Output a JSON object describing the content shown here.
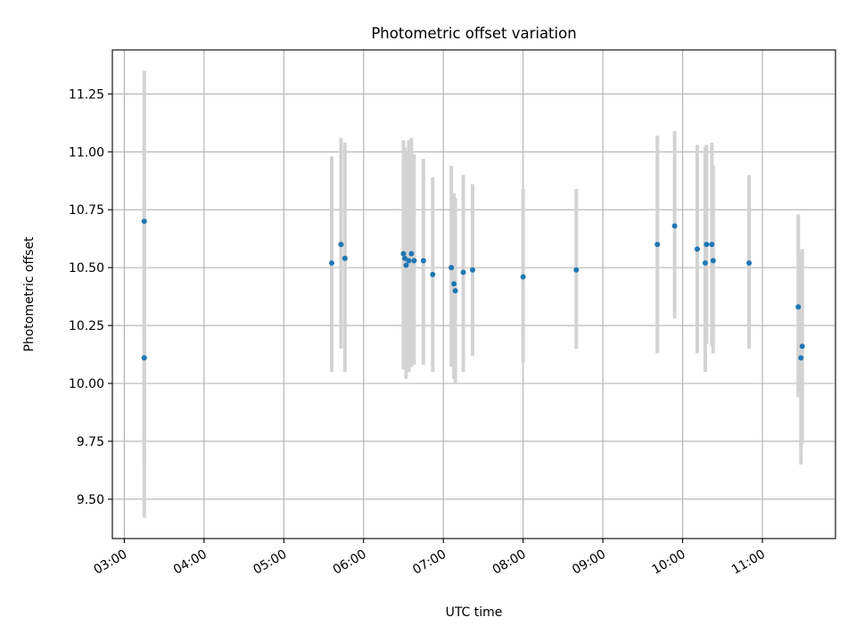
{
  "chart_data": {
    "type": "scatter",
    "title": "Photometric offset variation",
    "xlabel": "UTC time",
    "ylabel": "Photometric offset",
    "x_tick_labels": [
      "03:00",
      "04:00",
      "05:00",
      "06:00",
      "07:00",
      "08:00",
      "09:00",
      "10:00",
      "11:00"
    ],
    "y_ticks": [
      9.5,
      9.75,
      10.0,
      10.25,
      10.5,
      10.75,
      11.0,
      11.25
    ],
    "y_tick_labels": [
      "9.50",
      "9.75",
      "10.00",
      "10.25",
      "10.50",
      "10.75",
      "11.00",
      "11.25"
    ],
    "xlim": [
      "02:51",
      "11:55"
    ],
    "ylim": [
      9.33,
      11.44
    ],
    "grid": true,
    "series": [
      {
        "point_color": "#1f77b4",
        "errorbar_color": "#d3d3d3",
        "points": [
          {
            "x": "03:15",
            "y": 10.7,
            "err_low": 9.65,
            "err_high": 11.35
          },
          {
            "x": "03:15",
            "y": 10.11,
            "err_low": 9.42,
            "err_high": 10.8
          },
          {
            "x": "05:36",
            "y": 10.52,
            "err_low": 10.05,
            "err_high": 10.98
          },
          {
            "x": "05:43",
            "y": 10.6,
            "err_low": 10.15,
            "err_high": 11.06
          },
          {
            "x": "05:46",
            "y": 10.54,
            "err_low": 10.05,
            "err_high": 11.04
          },
          {
            "x": "06:30",
            "y": 10.56,
            "err_low": 10.06,
            "err_high": 11.05
          },
          {
            "x": "06:31",
            "y": 10.54,
            "err_low": 10.07,
            "err_high": 11.02
          },
          {
            "x": "06:32",
            "y": 10.51,
            "err_low": 10.02,
            "err_high": 11.0
          },
          {
            "x": "06:34",
            "y": 10.53,
            "err_low": 10.05,
            "err_high": 11.05
          },
          {
            "x": "06:36",
            "y": 10.56,
            "err_low": 10.07,
            "err_high": 11.06
          },
          {
            "x": "06:38",
            "y": 10.53,
            "err_low": 10.08,
            "err_high": 10.99
          },
          {
            "x": "06:45",
            "y": 10.53,
            "err_low": 10.08,
            "err_high": 10.97
          },
          {
            "x": "06:52",
            "y": 10.47,
            "err_low": 10.05,
            "err_high": 10.89
          },
          {
            "x": "07:06",
            "y": 10.5,
            "err_low": 10.07,
            "err_high": 10.94
          },
          {
            "x": "07:08",
            "y": 10.43,
            "err_low": 10.02,
            "err_high": 10.82
          },
          {
            "x": "07:09",
            "y": 10.4,
            "err_low": 10.0,
            "err_high": 10.8
          },
          {
            "x": "07:15",
            "y": 10.48,
            "err_low": 10.05,
            "err_high": 10.9
          },
          {
            "x": "07:22",
            "y": 10.49,
            "err_low": 10.12,
            "err_high": 10.86
          },
          {
            "x": "08:00",
            "y": 10.46,
            "err_low": 10.09,
            "err_high": 10.84
          },
          {
            "x": "08:40",
            "y": 10.49,
            "err_low": 10.15,
            "err_high": 10.84
          },
          {
            "x": "09:41",
            "y": 10.6,
            "err_low": 10.13,
            "err_high": 11.07
          },
          {
            "x": "09:54",
            "y": 10.68,
            "err_low": 10.28,
            "err_high": 11.09
          },
          {
            "x": "10:11",
            "y": 10.58,
            "err_low": 10.13,
            "err_high": 11.03
          },
          {
            "x": "10:17",
            "y": 10.52,
            "err_low": 10.05,
            "err_high": 11.02
          },
          {
            "x": "10:18",
            "y": 10.6,
            "err_low": 10.17,
            "err_high": 11.03
          },
          {
            "x": "10:22",
            "y": 10.6,
            "err_low": 10.16,
            "err_high": 11.04
          },
          {
            "x": "10:23",
            "y": 10.53,
            "err_low": 10.13,
            "err_high": 10.94
          },
          {
            "x": "10:50",
            "y": 10.52,
            "err_low": 10.15,
            "err_high": 10.9
          },
          {
            "x": "11:27",
            "y": 10.33,
            "err_low": 9.94,
            "err_high": 10.73
          },
          {
            "x": "11:29",
            "y": 10.11,
            "err_low": 9.65,
            "err_high": 10.57
          },
          {
            "x": "11:30",
            "y": 10.16,
            "err_low": 9.74,
            "err_high": 10.58
          }
        ]
      }
    ]
  }
}
